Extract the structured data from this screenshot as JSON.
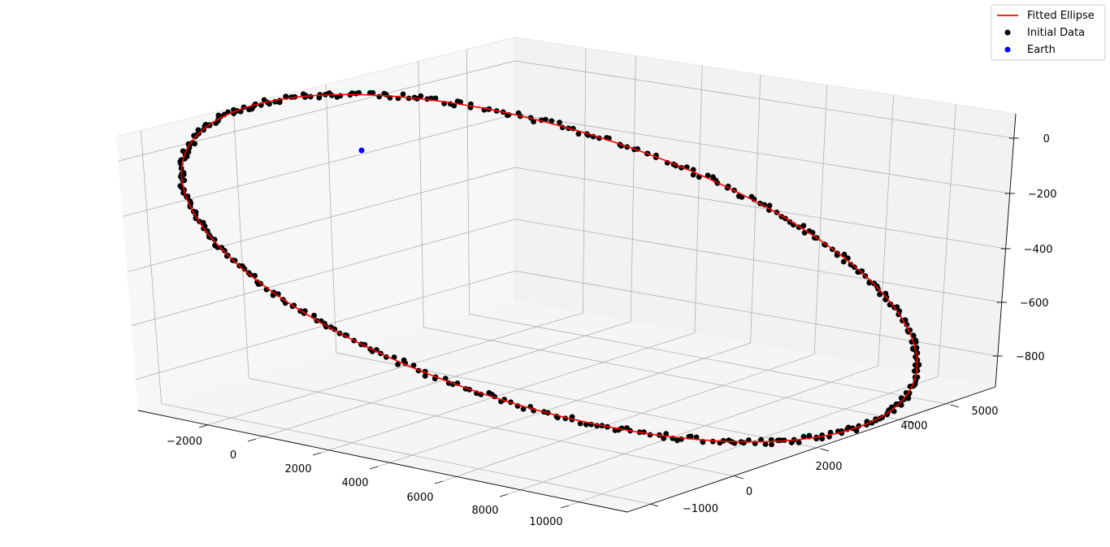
{
  "chart_data": {
    "type": "scatter",
    "projection": "3d",
    "title": "",
    "xlabel": "",
    "ylabel": "",
    "zlabel": "",
    "x_ticks": [
      -2000,
      0,
      2000,
      4000,
      6000,
      8000,
      10000
    ],
    "y_ticks": [
      -1000,
      0,
      2000,
      4000,
      5000
    ],
    "y_tick_labels": [
      "−1000",
      "0",
      "2000",
      "4000",
      "5000"
    ],
    "x_tick_labels": [
      "−2000",
      "0",
      "2000",
      "4000",
      "6000",
      "8000",
      "10000"
    ],
    "z_ticks": [
      0,
      -200,
      -400,
      -600,
      -800
    ],
    "z_tick_labels": [
      "0",
      "−200",
      "−400",
      "−600",
      "−800"
    ],
    "xlim": [
      -3000,
      11000
    ],
    "ylim": [
      -1500,
      5500
    ],
    "zlim": [
      -900,
      50
    ],
    "grid": true,
    "legend_position": "top-right",
    "series": [
      {
        "name": "Fitted Ellipse",
        "kind": "line",
        "color": "#ff0000"
      },
      {
        "name": "Initial Data",
        "kind": "scatter",
        "color": "#000000",
        "point_count": 420
      },
      {
        "name": "Earth",
        "kind": "scatter",
        "color": "#0000ff",
        "points": [
          {
            "x": 0,
            "y": 0,
            "z": 0
          }
        ]
      }
    ],
    "orbit": {
      "center": {
        "x": 4200,
        "y": 2000,
        "z": -430
      },
      "semi_major": 7000,
      "semi_minor": 3000,
      "z_amplitude": 460
    }
  }
}
